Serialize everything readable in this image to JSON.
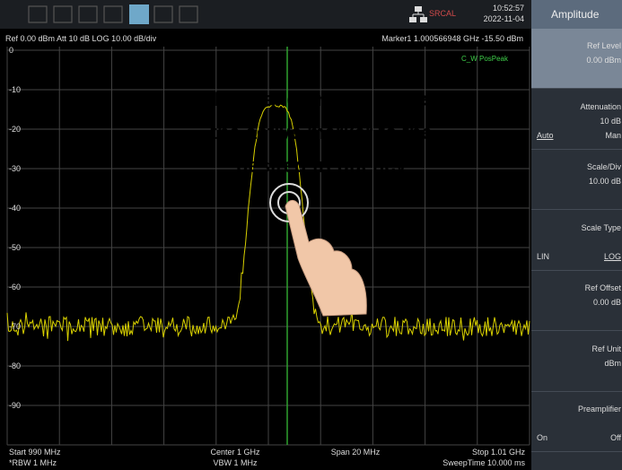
{
  "toolbar": {
    "time": "10:52:57",
    "date": "2022-11-04",
    "status": "SRCAL"
  },
  "plot": {
    "header_left": "Ref 0.00 dBm  Att 10 dB  LOG 10.00 dB/div",
    "header_right": "Marker1 1.000566948 GHz  -15.50 dBm",
    "trace_label": "C_W PosPeak",
    "y_labels": [
      "0",
      "-10",
      "-20",
      "-30",
      "-40",
      "-50",
      "-60",
      "-70",
      "-80",
      "-90"
    ],
    "footer": {
      "start": "Start 990 MHz",
      "rbw": "*RBW 1 MHz",
      "center": "Center 1 GHz",
      "vbw": "VBW 1 MHz",
      "span": "Span 20 MHz",
      "stop": "Stop 1.01 GHz",
      "sweep": "SweepTime 10.000 ms"
    }
  },
  "overlay": {
    "lines": [
      "Hold and drag to move",
      "the active marker to the",
      "desired frequency"
    ]
  },
  "panel": {
    "title": "Amplitude",
    "items": [
      {
        "label": "Ref Level",
        "value": "0.00 dBm"
      },
      {
        "label": "Attenuation",
        "value": "10 dB",
        "left": "Auto",
        "right": "Man"
      },
      {
        "label": "Scale/Div",
        "value": "10.00 dB"
      },
      {
        "label": "Scale Type",
        "left": "LIN",
        "right": "LOG"
      },
      {
        "label": "Ref Offset",
        "value": "0.00 dB"
      },
      {
        "label": "Ref Unit",
        "value": "dBm"
      },
      {
        "label": "Preamplifier",
        "left": "On",
        "right": "Off"
      }
    ]
  }
}
